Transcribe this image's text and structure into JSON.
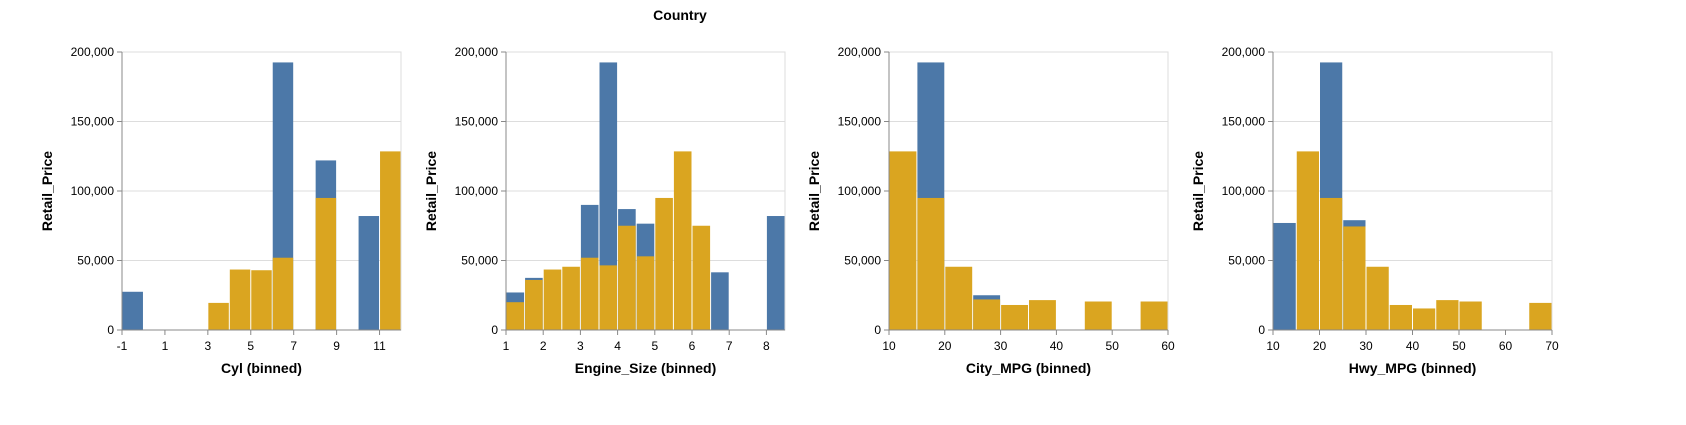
{
  "legend": {
    "title": "Country"
  },
  "colors": {
    "series_a": "#4c78a8",
    "series_b": "#daa520",
    "grid": "#dddddd",
    "axis": "#888888"
  },
  "chart_data": [
    {
      "type": "bar",
      "stacked": false,
      "xlabel": "Cyl (binned)",
      "ylabel": "Retail_Price",
      "xlim": [
        -1,
        12
      ],
      "ylim": [
        0,
        200000
      ],
      "xticks": [
        -1,
        1,
        3,
        5,
        7,
        9,
        11
      ],
      "yticks": [
        0,
        50000,
        100000,
        150000,
        200000
      ],
      "grid": true,
      "series": [
        {
          "bins": [
            [
              -1,
              0
            ],
            [
              6,
              7
            ],
            [
              8,
              9
            ],
            [
              10,
              11
            ]
          ],
          "values": [
            27500,
            192500,
            122000,
            82000
          ]
        },
        {
          "bins": [
            [
              3,
              4
            ],
            [
              4,
              5
            ],
            [
              5,
              6
            ],
            [
              6,
              7
            ],
            [
              8,
              9
            ],
            [
              11,
              12
            ]
          ],
          "values": [
            19500,
            43500,
            43000,
            52000,
            95000,
            128500
          ]
        }
      ]
    },
    {
      "type": "bar",
      "stacked": false,
      "xlabel": "Engine_Size (binned)",
      "ylabel": "Retail_Price",
      "xlim": [
        1,
        8.5
      ],
      "ylim": [
        0,
        200000
      ],
      "xticks": [
        1,
        2,
        3,
        4,
        5,
        6,
        7,
        8
      ],
      "yticks": [
        0,
        50000,
        100000,
        150000,
        200000
      ],
      "grid": true,
      "series": [
        {
          "bins": [
            [
              1,
              1.5
            ],
            [
              1.5,
              2
            ],
            [
              3,
              3.5
            ],
            [
              3.5,
              4
            ],
            [
              4,
              4.5
            ],
            [
              4.5,
              5
            ],
            [
              6.5,
              7
            ],
            [
              8,
              8.5
            ]
          ],
          "values": [
            27000,
            37500,
            90000,
            192500,
            87000,
            76500,
            41500,
            82000
          ]
        },
        {
          "bins": [
            [
              1,
              1.5
            ],
            [
              1.5,
              2
            ],
            [
              2,
              2.5
            ],
            [
              2.5,
              3
            ],
            [
              3,
              3.5
            ],
            [
              3.5,
              4
            ],
            [
              4,
              4.5
            ],
            [
              4.5,
              5
            ],
            [
              5,
              5.5
            ],
            [
              5.5,
              6
            ],
            [
              6,
              6.5
            ]
          ],
          "values": [
            20000,
            36000,
            43500,
            45500,
            52000,
            46500,
            75000,
            53000,
            95000,
            128500,
            75000
          ]
        }
      ]
    },
    {
      "type": "bar",
      "stacked": false,
      "xlabel": "City_MPG (binned)",
      "ylabel": "Retail_Price",
      "xlim": [
        10,
        60
      ],
      "ylim": [
        0,
        200000
      ],
      "xticks": [
        10,
        20,
        30,
        40,
        50,
        60
      ],
      "yticks": [
        0,
        50000,
        100000,
        150000,
        200000
      ],
      "grid": true,
      "series": [
        {
          "bins": [
            [
              15,
              20
            ],
            [
              25,
              30
            ]
          ],
          "values": [
            192500,
            25000
          ]
        },
        {
          "bins": [
            [
              10,
              15
            ],
            [
              15,
              20
            ],
            [
              20,
              25
            ],
            [
              25,
              30
            ],
            [
              30,
              35
            ],
            [
              35,
              40
            ],
            [
              45,
              50
            ],
            [
              55,
              60
            ]
          ],
          "values": [
            128500,
            95000,
            45500,
            22000,
            18000,
            21500,
            20500,
            20500
          ]
        }
      ]
    },
    {
      "type": "bar",
      "stacked": false,
      "xlabel": "Hwy_MPG (binned)",
      "ylabel": "Retail_Price",
      "xlim": [
        10,
        70
      ],
      "ylim": [
        0,
        200000
      ],
      "xticks": [
        10,
        20,
        30,
        40,
        50,
        60,
        70
      ],
      "yticks": [
        0,
        50000,
        100000,
        150000,
        200000
      ],
      "grid": true,
      "series": [
        {
          "bins": [
            [
              10,
              15
            ],
            [
              20,
              25
            ],
            [
              25,
              30
            ]
          ],
          "values": [
            77000,
            192500,
            79000
          ]
        },
        {
          "bins": [
            [
              15,
              20
            ],
            [
              20,
              25
            ],
            [
              25,
              30
            ],
            [
              30,
              35
            ],
            [
              35,
              40
            ],
            [
              40,
              45
            ],
            [
              45,
              50
            ],
            [
              50,
              55
            ],
            [
              65,
              70
            ]
          ],
          "values": [
            128500,
            95000,
            74500,
            45500,
            18000,
            15500,
            21500,
            20500,
            19500
          ]
        }
      ]
    }
  ]
}
